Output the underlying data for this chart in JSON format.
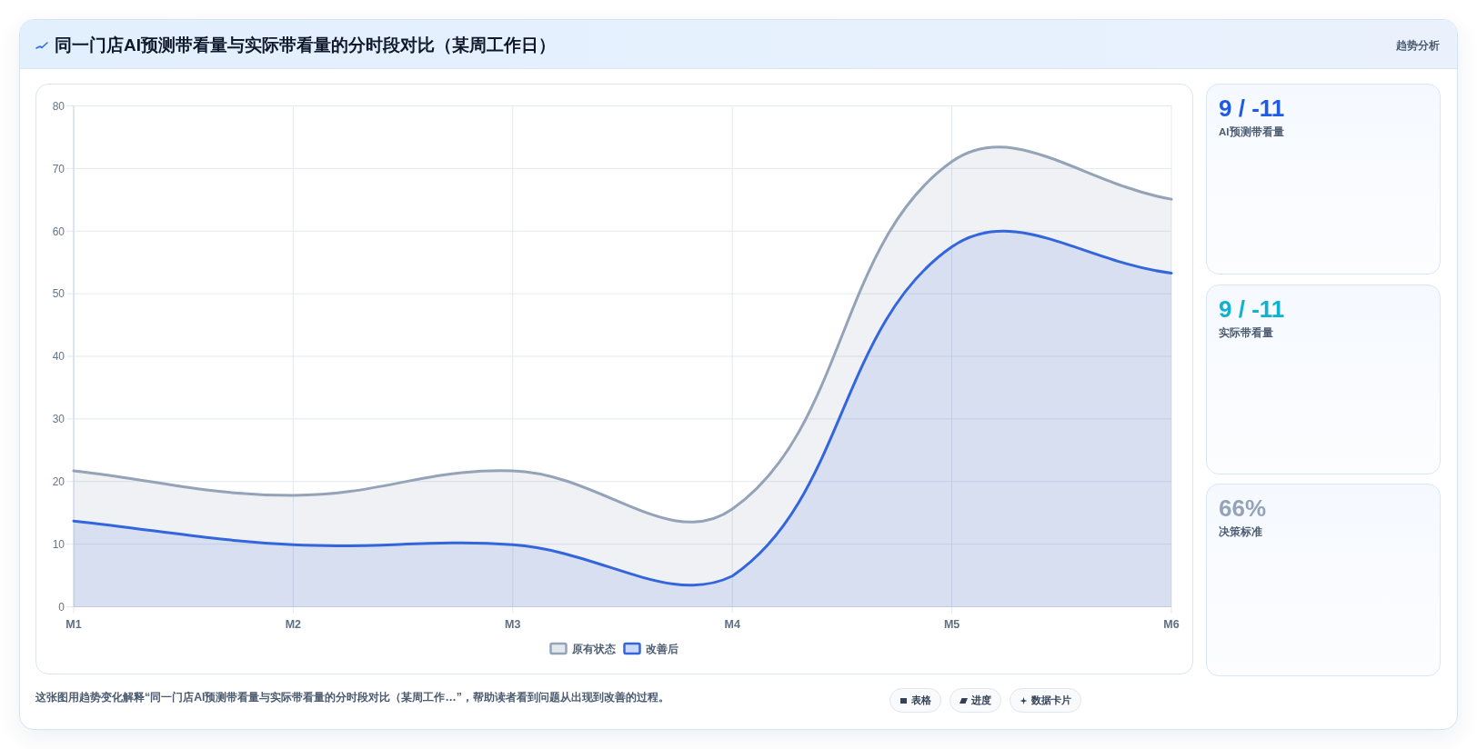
{
  "chart_data": [
    {
      "type": "other",
      "title": "同一门店AI预测带看量与实际带看量的分时段对比（某周工作日）",
      "subtitle": "趋势分析"
    },
    {
      "type": "area",
      "categories": [
        "M1",
        "M2",
        "M3",
        "M4",
        "M5",
        "M6"
      ],
      "series": [
        {
          "name": "原有状态",
          "color": "#94a3b8",
          "values": [
            21.7,
            17.8,
            21.7,
            15.6,
            71.1,
            65.1
          ]
        },
        {
          "name": "改善后",
          "color": "#3366dd",
          "values": [
            13.7,
            9.9,
            9.9,
            4.9,
            57.5,
            53.3
          ]
        }
      ],
      "ylim": [
        0,
        80
      ],
      "yticks": [
        0,
        10,
        20,
        30,
        40,
        50,
        60,
        70,
        80
      ],
      "grid": true,
      "legend": "bottom",
      "annotations": [
        "这张图用趋势变化解释“同一门店AI预测带看量与实际带看量的分时段对比（某周工作…”，帮助读者看到问题从出现到改善的过程。",
        "表格",
        "进度",
        "数据卡片"
      ]
    },
    {
      "type": "other",
      "title": "9 / -11",
      "subtitle": "AI预测带看量",
      "color": "#1f5ae6"
    },
    {
      "type": "other",
      "title": "9 / -11",
      "subtitle": "实际带看量",
      "color": "#0eb1cf"
    },
    {
      "type": "other",
      "title": "66%",
      "subtitle": "决策标准",
      "color": "#94a3b8"
    }
  ]
}
